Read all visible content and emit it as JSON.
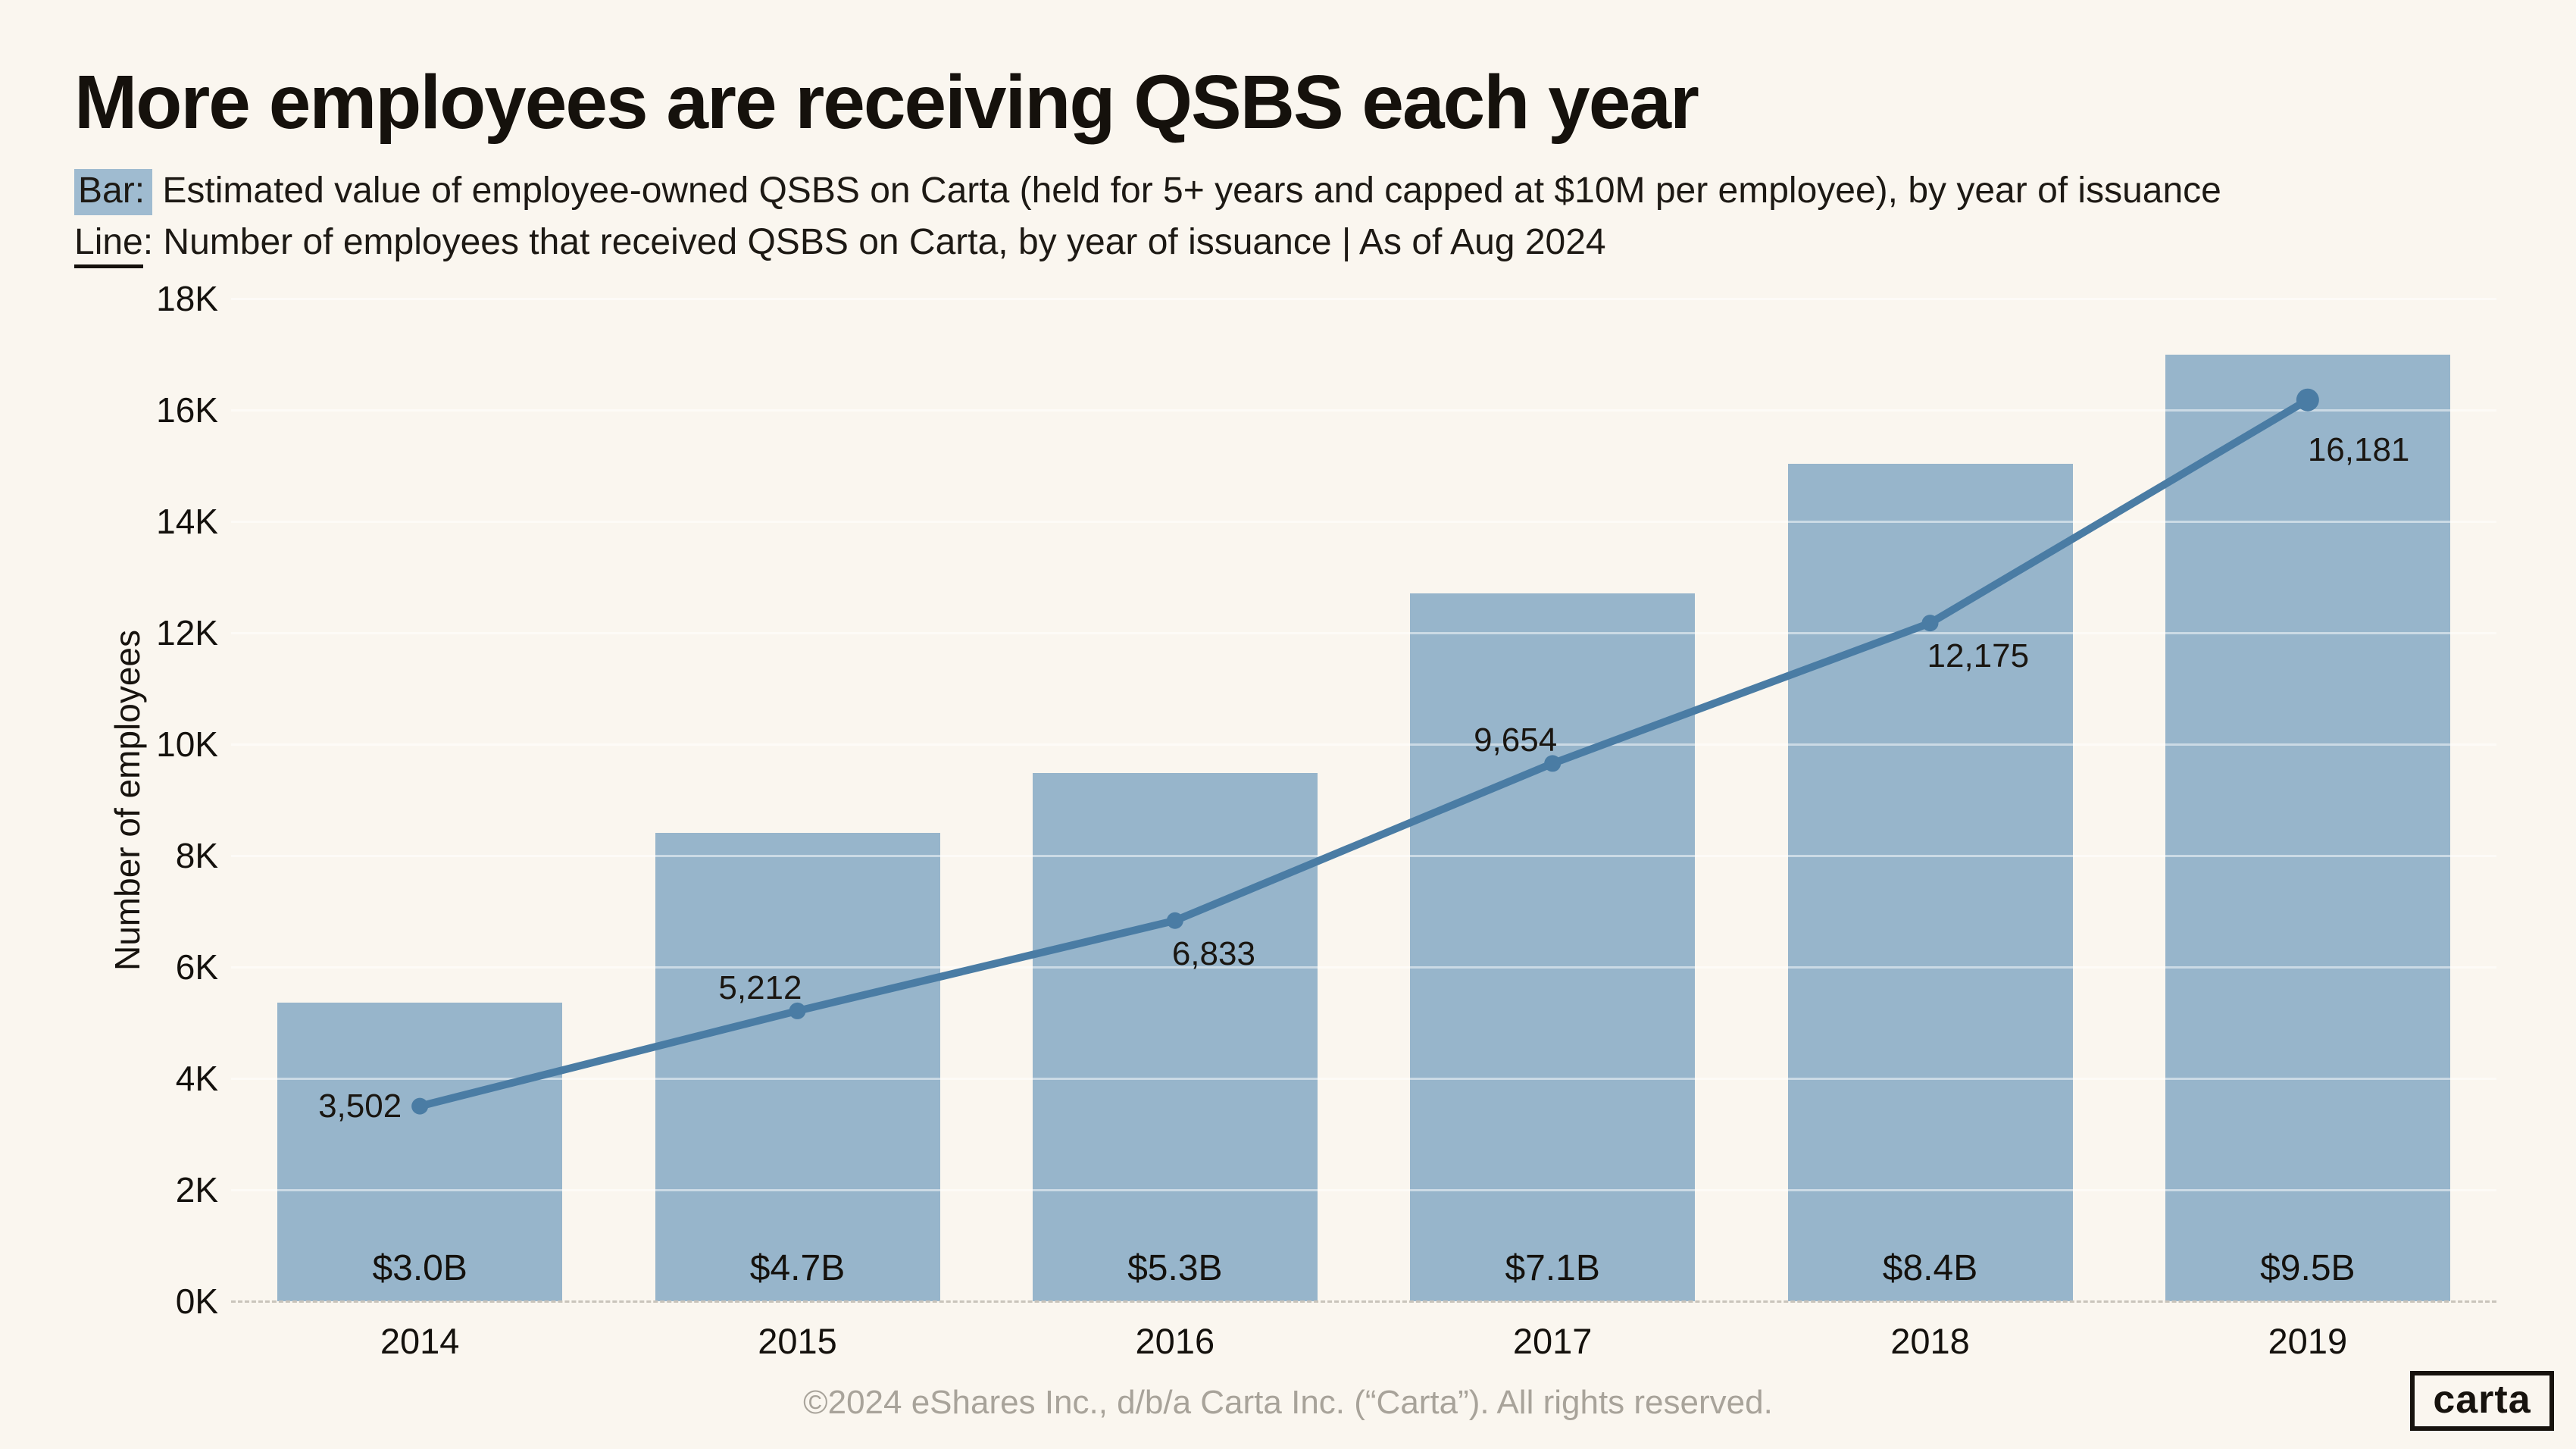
{
  "header": {
    "title": "More employees are receiving QSBS each year",
    "bar_prefix": "Bar:",
    "bar_text": " Estimated value of employee-owned QSBS on Carta (held for 5+ years and capped at $10M per employee), by year of issuance",
    "line_prefix": "Line",
    "line_text": ": Number of employees that received QSBS on Carta, by year of issuance | As of Aug 2024"
  },
  "chart_data": {
    "type": "bar+line",
    "categories": [
      "2014",
      "2015",
      "2016",
      "2017",
      "2018",
      "2019"
    ],
    "series": [
      {
        "name": "qsbs-value-bars",
        "label": "Estimated value of employee-owned QSBS ($B)",
        "type": "bar",
        "values_billions": [
          3.0,
          4.7,
          5.3,
          7.1,
          8.4,
          9.5
        ],
        "value_labels": [
          "$3.0B",
          "$4.7B",
          "$5.3B",
          "$7.1B",
          "$8.4B",
          "$9.5B"
        ]
      },
      {
        "name": "employees-line",
        "label": "Number of employees that received QSBS",
        "type": "line",
        "values": [
          3502,
          5212,
          6833,
          9654,
          12175,
          16181
        ],
        "value_labels": [
          "3,502",
          "5,212",
          "6,833",
          "9,654",
          "12,175",
          "16,181"
        ],
        "label_anchors": [
          "left-of",
          "above",
          "below",
          "above",
          "below",
          "below-far"
        ]
      }
    ],
    "xlabel": "",
    "ylabel": "Number of employees",
    "yticks": [
      "0K",
      "2K",
      "4K",
      "6K",
      "8K",
      "10K",
      "12K",
      "14K",
      "16K",
      "18K"
    ],
    "ylim": [
      0,
      18000
    ],
    "grid": "horizontal",
    "legend_position": "none"
  },
  "colors": {
    "background": "#faf6ef",
    "bar_fill": "#97b5cb",
    "bar_highlight": "#9fbbd0",
    "line_stroke": "#4a7ca4",
    "text_dark": "#14110d",
    "text_muted": "#a8a39a",
    "gridline": "rgba(255,255,255,0.5)",
    "baseline_dash": "#c9c4bb"
  },
  "footer": {
    "copyright": "©2024 eShares Inc., d/b/a Carta Inc. (“Carta”). All rights reserved.",
    "logo_text": "carta"
  }
}
